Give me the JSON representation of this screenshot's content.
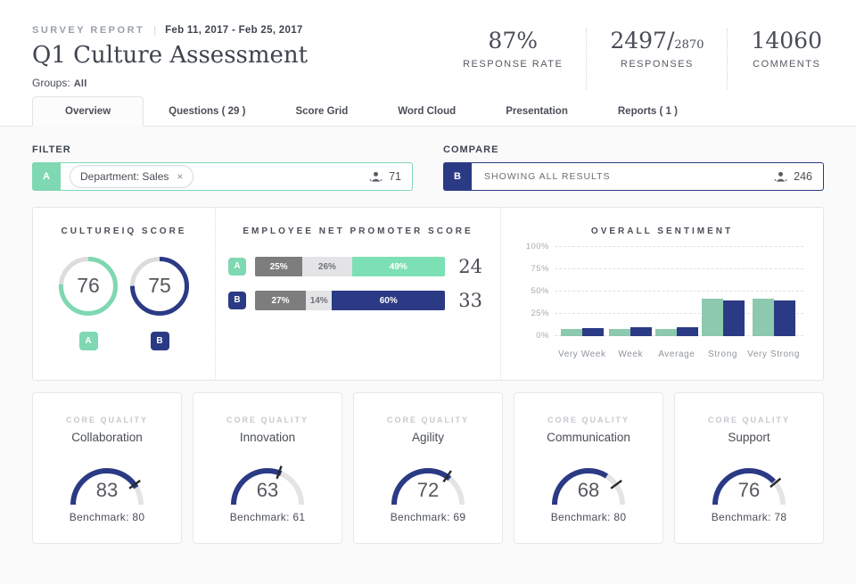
{
  "colors": {
    "green": "#7ed8b2",
    "green_bar": "#8cc9ae",
    "navy": "#2b3a84",
    "seg_dark_gray": "#7d7d7d",
    "seg_light_gray": "#e4e4e6",
    "ring_track": "#dcdcdc",
    "gauge_track": "#e4e4e4",
    "tick": "#26282b"
  },
  "header": {
    "eyebrow": "SURVEY REPORT",
    "divider": "|",
    "date_range": "Feb 11, 2017 - Feb 25, 2017",
    "title": "Q1 Culture Assessment",
    "groups_label": "Groups:",
    "groups_value": "All",
    "stats": [
      {
        "value": "87%",
        "label": "RESPONSE RATE"
      },
      {
        "value": "2497/",
        "value_small": "2870",
        "label": "RESPONSES"
      },
      {
        "value": "14060",
        "label": "COMMENTS"
      }
    ]
  },
  "tabs": [
    {
      "label": "Overview",
      "active": true
    },
    {
      "label": "Questions ( 29 )",
      "active": false
    },
    {
      "label": "Score Grid",
      "active": false
    },
    {
      "label": "Word Cloud",
      "active": false
    },
    {
      "label": "Presentation",
      "active": false
    },
    {
      "label": "Reports ( 1 )",
      "active": false
    }
  ],
  "filter": {
    "label": "FILTER",
    "badge": "A",
    "chip_text": "Department: Sales",
    "chip_close": "×",
    "count": "71"
  },
  "compare": {
    "label": "COMPARE",
    "badge": "B",
    "text": "SHOWING ALL RESULTS",
    "count": "246"
  },
  "panel": {
    "cultureiq": {
      "title": "CULTUREIQ SCORE",
      "rings": [
        {
          "badge": "A",
          "score": 76,
          "color": "#7ed8b2"
        },
        {
          "badge": "B",
          "score": 75,
          "color": "#2b3a84"
        }
      ]
    },
    "enps": {
      "title": "EMPLOYEE NET PROMOTER SCORE",
      "rows": [
        {
          "badge": "A",
          "badge_color": "#7ed8b2",
          "score": "24",
          "segments": [
            {
              "pct": 25,
              "label": "25%",
              "color": "#7d7d7d",
              "text": "#ffffff"
            },
            {
              "pct": 26,
              "label": "26%",
              "color": "#e4e4e6",
              "text": "#6f737a"
            },
            {
              "pct": 49,
              "label": "49%",
              "color": "#7de0b4",
              "text": "#ffffff"
            }
          ]
        },
        {
          "badge": "B",
          "badge_color": "#2b3a84",
          "score": "33",
          "segments": [
            {
              "pct": 27,
              "label": "27%",
              "color": "#7d7d7d",
              "text": "#ffffff"
            },
            {
              "pct": 14,
              "label": "14%",
              "color": "#e4e4e6",
              "text": "#6f737a"
            },
            {
              "pct": 60,
              "label": "60%",
              "color": "#2b3a84",
              "text": "#ffffff"
            }
          ]
        }
      ]
    },
    "sentiment": {
      "title": "OVERALL SENTIMENT",
      "y_ticks": [
        "0%",
        "25%",
        "50%",
        "75%",
        "100%"
      ],
      "categories": [
        "Very Week",
        "Week",
        "Average",
        "Strong",
        "Very Strong"
      ],
      "series": [
        {
          "name": "A",
          "color": "#8cc9ae",
          "values": [
            8,
            8,
            8,
            42,
            42
          ]
        },
        {
          "name": "B",
          "color": "#2b3a84",
          "values": [
            9,
            10,
            10,
            40,
            40
          ]
        }
      ]
    }
  },
  "core_qualities": {
    "eyebrow": "CORE QUALITY",
    "benchmark_prefix": "Benchmark: ",
    "cards": [
      {
        "name": "Collaboration",
        "score": 83,
        "benchmark": 80
      },
      {
        "name": "Innovation",
        "score": 63,
        "benchmark": 61
      },
      {
        "name": "Agility",
        "score": 72,
        "benchmark": 69
      },
      {
        "name": "Communication",
        "score": 68,
        "benchmark": 80
      },
      {
        "name": "Support",
        "score": 76,
        "benchmark": 78
      }
    ]
  },
  "chart_data": [
    {
      "type": "pie",
      "subtype": "donut-rings",
      "title": "CULTUREIQ SCORE",
      "series": [
        {
          "name": "A",
          "value": 76
        },
        {
          "name": "B",
          "value": 75
        }
      ],
      "max": 100
    },
    {
      "type": "bar",
      "subtype": "stacked-horizontal",
      "title": "EMPLOYEE NET PROMOTER SCORE",
      "rows": [
        {
          "name": "A",
          "segments": [
            25,
            26,
            49
          ],
          "score": 24
        },
        {
          "name": "B",
          "segments": [
            27,
            14,
            60
          ],
          "score": 33
        }
      ]
    },
    {
      "type": "bar",
      "title": "OVERALL SENTIMENT",
      "categories": [
        "Very Week",
        "Week",
        "Average",
        "Strong",
        "Very Strong"
      ],
      "series": [
        {
          "name": "A",
          "values": [
            8,
            8,
            8,
            42,
            42
          ]
        },
        {
          "name": "B",
          "values": [
            9,
            10,
            10,
            40,
            40
          ]
        }
      ],
      "ylabel": "",
      "xlabel": "",
      "ylim": [
        0,
        100
      ],
      "grid": "dashed-horizontal",
      "legend": "none"
    },
    {
      "type": "bar",
      "subtype": "gauge-semicircle",
      "title": "CORE QUALITY",
      "values": [
        {
          "name": "Collaboration",
          "score": 83,
          "benchmark": 80
        },
        {
          "name": "Innovation",
          "score": 63,
          "benchmark": 61
        },
        {
          "name": "Agility",
          "score": 72,
          "benchmark": 69
        },
        {
          "name": "Communication",
          "score": 68,
          "benchmark": 80
        },
        {
          "name": "Support",
          "score": 76,
          "benchmark": 78
        }
      ],
      "max": 100
    }
  ]
}
